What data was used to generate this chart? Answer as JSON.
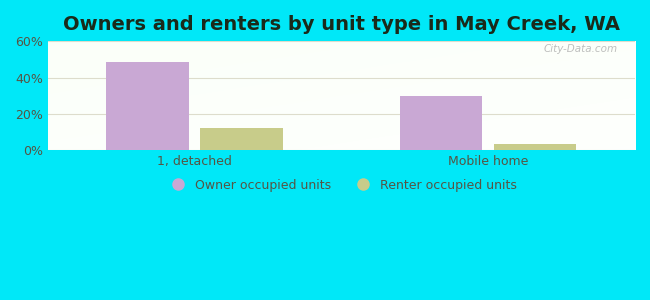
{
  "title": "Owners and renters by unit type in May Creek, WA",
  "categories": [
    "1, detached",
    "Mobile home"
  ],
  "owner_values": [
    48.5,
    30.0
  ],
  "renter_values": [
    12.5,
    3.5
  ],
  "owner_color": "#c9a8d4",
  "renter_color": "#c8cc8a",
  "ylim": [
    0,
    60
  ],
  "yticks": [
    0,
    20,
    40,
    60
  ],
  "ytick_labels": [
    "0%",
    "20%",
    "40%",
    "60%"
  ],
  "bar_width": 0.28,
  "bg_outer": "#00e8f8",
  "title_fontsize": 14,
  "legend_labels": [
    "Owner occupied units",
    "Renter occupied units"
  ],
  "watermark": "City-Data.com",
  "grid_color": "#ddddcc",
  "tick_color": "#777766",
  "label_color": "#555544"
}
